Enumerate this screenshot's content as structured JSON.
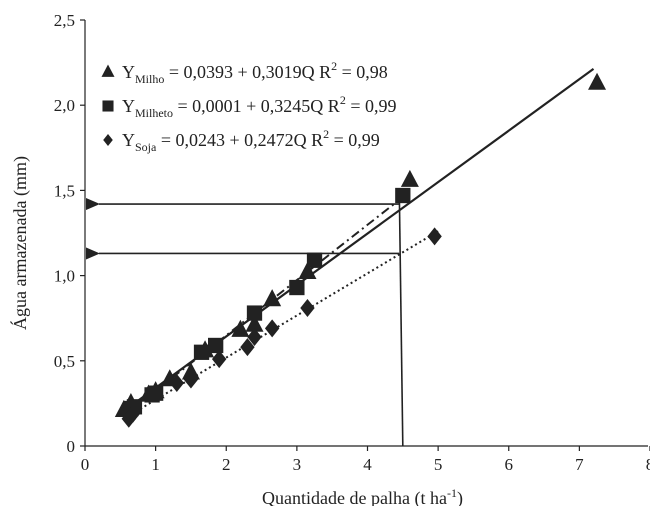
{
  "chart_data": {
    "type": "scatter",
    "xlabel": "Quantidade de palha (t ha",
    "xlabel_sup": "-1",
    "xlabel_end": ")",
    "ylabel": "Água armazenada (mm)",
    "xlim": [
      0,
      8
    ],
    "ylim": [
      0,
      2.5
    ],
    "x_ticks": [
      0,
      1,
      2,
      3,
      4,
      5,
      6,
      7,
      8
    ],
    "x_tick_labels": [
      "0",
      "1",
      "2",
      "3",
      "4",
      "5",
      "6",
      "7",
      "8"
    ],
    "y_ticks": [
      0,
      0.5,
      1.0,
      1.5,
      2.0,
      2.5
    ],
    "y_tick_labels": [
      "0",
      "0,5",
      "1,0",
      "1,5",
      "2,0",
      "2,5"
    ],
    "grid": false,
    "legend_position": "top-left",
    "series": [
      {
        "name": "Milho",
        "marker": "triangle",
        "line_style": "solid",
        "equation": {
          "y": "Y",
          "sub": "Milho",
          "rhs": " = 0,0393 + 0,3019Q  R",
          "r2_sup": "2",
          "r2_val": " = 0,98"
        },
        "intercept": 0.0393,
        "slope": 0.3019,
        "fit_x": [
          0.6,
          7.2
        ],
        "points": [
          [
            0.55,
            0.21
          ],
          [
            0.65,
            0.25
          ],
          [
            0.9,
            0.3
          ],
          [
            1.0,
            0.32
          ],
          [
            1.2,
            0.39
          ],
          [
            1.5,
            0.43
          ],
          [
            1.7,
            0.56
          ],
          [
            2.2,
            0.68
          ],
          [
            2.4,
            0.71
          ],
          [
            2.65,
            0.86
          ],
          [
            3.15,
            1.02
          ],
          [
            4.6,
            1.56
          ],
          [
            7.25,
            2.13
          ]
        ]
      },
      {
        "name": "Milheto",
        "marker": "square",
        "line_style": "dashdot",
        "equation": {
          "y": "Y",
          "sub": "Milheto",
          "rhs": " = 0,0001 + 0,3245Q  R",
          "r2_sup": "2",
          "r2_val": " = 0,99"
        },
        "intercept": 0.0001,
        "slope": 0.3245,
        "fit_x": [
          0.6,
          4.5
        ],
        "points": [
          [
            0.65,
            0.22
          ],
          [
            0.7,
            0.23
          ],
          [
            0.95,
            0.3
          ],
          [
            1.0,
            0.31
          ],
          [
            1.65,
            0.55
          ],
          [
            1.85,
            0.59
          ],
          [
            2.4,
            0.78
          ],
          [
            3.0,
            0.93
          ],
          [
            3.25,
            1.09
          ],
          [
            4.5,
            1.47
          ]
        ]
      },
      {
        "name": "Soja",
        "marker": "diamond",
        "line_style": "dotted",
        "equation": {
          "y": "Y",
          "sub": "Soja",
          "rhs": " = 0,0243 + 0,2472Q  R",
          "r2_sup": "2",
          "r2_val": " = 0,99"
        },
        "intercept": 0.0243,
        "slope": 0.2472,
        "fit_x": [
          0.6,
          5.0
        ],
        "points": [
          [
            0.62,
            0.16
          ],
          [
            0.68,
            0.19
          ],
          [
            1.3,
            0.37
          ],
          [
            1.5,
            0.39
          ],
          [
            1.9,
            0.51
          ],
          [
            2.3,
            0.58
          ],
          [
            2.4,
            0.64
          ],
          [
            2.65,
            0.69
          ],
          [
            3.15,
            0.81
          ],
          [
            4.95,
            1.23
          ]
        ]
      }
    ],
    "reference_arrows": [
      {
        "from": [
          4.45,
          1.42
        ],
        "to": [
          0,
          1.42
        ]
      },
      {
        "from": [
          4.45,
          1.13
        ],
        "to": [
          0,
          1.13
        ]
      }
    ],
    "reference_vline": {
      "x": [
        4.45,
        4.5
      ],
      "y": [
        1.5,
        0.0
      ]
    },
    "colors": {
      "ink": "#222222",
      "background": "#ffffff"
    }
  }
}
